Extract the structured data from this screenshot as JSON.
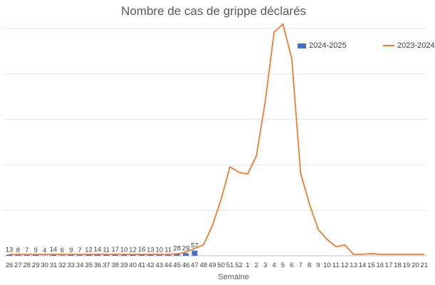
{
  "chart_data": {
    "type": "bar",
    "title": "Nombre de cas de grippe déclarés",
    "xlabel": "Semaine",
    "ylabel": "",
    "grid": true,
    "legend_position": "top-right",
    "categories": [
      "26",
      "27",
      "28",
      "29",
      "30",
      "31",
      "32",
      "33",
      "34",
      "35",
      "36",
      "37",
      "38",
      "39",
      "40",
      "41",
      "42",
      "43",
      "44",
      "45",
      "46",
      "47",
      "48",
      "49",
      "50",
      "51",
      "52",
      "1",
      "2",
      "3",
      "4",
      "5",
      "6",
      "7",
      "8",
      "9",
      "10",
      "11",
      "12",
      "13",
      "14",
      "15",
      "16",
      "17",
      "18",
      "19",
      "20",
      "21"
    ],
    "ylim": [
      0,
      2500
    ],
    "series": [
      {
        "name": "2024-2025",
        "kind": "bar",
        "color": "#4472C4",
        "values": [
          13,
          8,
          7,
          9,
          4,
          14,
          6,
          9,
          7,
          12,
          14,
          11,
          17,
          10,
          12,
          16,
          13,
          10,
          11,
          28,
          29,
          57,
          null,
          null,
          null,
          null,
          null,
          null,
          null,
          null,
          null,
          null,
          null,
          null,
          null,
          null,
          null,
          null,
          null,
          null,
          null,
          null,
          null,
          null,
          null,
          null,
          null,
          null
        ]
      },
      {
        "name": "2023-2024",
        "kind": "line",
        "color": "#ED7D31",
        "values": [
          5,
          4,
          4,
          5,
          6,
          7,
          5,
          6,
          6,
          8,
          8,
          9,
          10,
          10,
          11,
          12,
          13,
          14,
          16,
          20,
          40,
          80,
          120,
          330,
          620,
          980,
          920,
          900,
          1100,
          1700,
          2460,
          2550,
          2170,
          910,
          570,
          290,
          180,
          100,
          120,
          10,
          -25,
          25,
          -20,
          -30,
          -10,
          -15,
          -10,
          -30
        ]
      }
    ],
    "legend_labels": {
      "bar": "2024-2025",
      "line": "2023-2024"
    }
  }
}
